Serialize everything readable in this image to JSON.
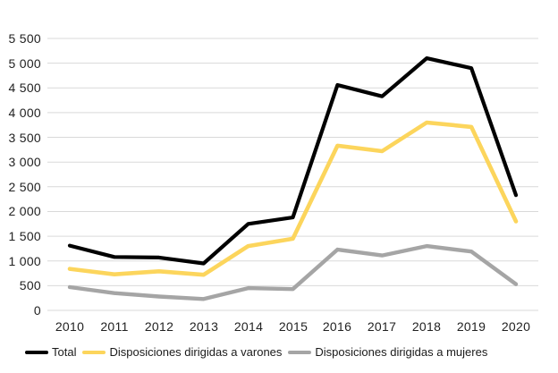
{
  "chart_data": {
    "type": "line",
    "categories": [
      "2010",
      "2011",
      "2012",
      "2013",
      "2014",
      "2015",
      "2016",
      "2017",
      "2018",
      "2019",
      "2020"
    ],
    "series": [
      {
        "name": "Total",
        "color": "#000000",
        "values": [
          1310,
          1080,
          1070,
          950,
          1750,
          1880,
          4560,
          4330,
          5100,
          4900,
          2330
        ]
      },
      {
        "name": "Disposiciones dirigidas a varones",
        "color": "#FCD55C",
        "values": [
          840,
          730,
          790,
          720,
          1300,
          1450,
          3330,
          3220,
          3800,
          3710,
          1800
        ]
      },
      {
        "name": "Disposiciones dirigidas a mujeres",
        "color": "#A5A5A5",
        "values": [
          470,
          350,
          280,
          230,
          450,
          430,
          1230,
          1110,
          1300,
          1190,
          530
        ]
      }
    ],
    "y_axis": {
      "min": 0,
      "max": 5500,
      "step": 500,
      "tick_labels": [
        "0",
        "500",
        "1 000",
        "1 500",
        "2 000",
        "2 500",
        "3 000",
        "3 500",
        "4 000",
        "4 500",
        "5 000",
        "5 500"
      ]
    },
    "grid": true,
    "legend_position": "bottom",
    "colors": {
      "gridline": "#D9D9D9",
      "axis_text": "#222222"
    }
  }
}
